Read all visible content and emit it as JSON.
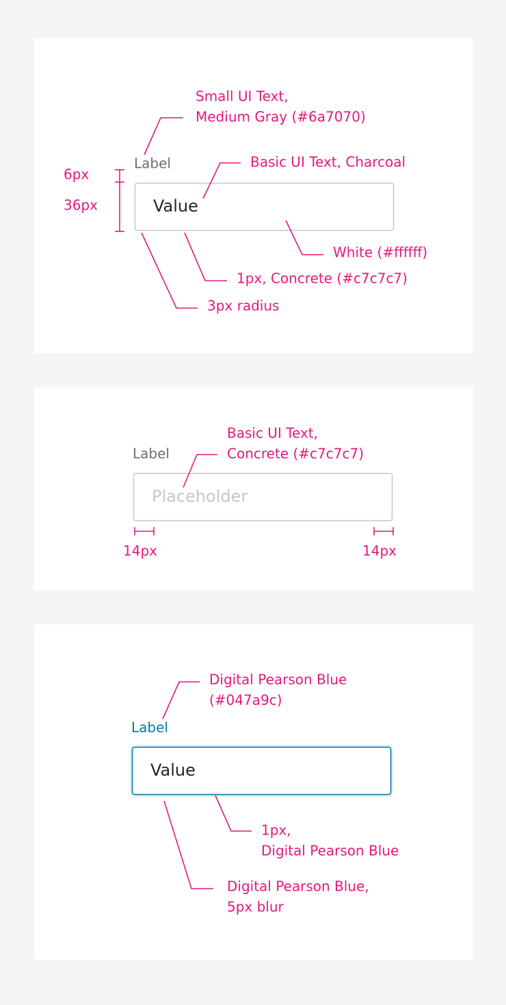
{
  "panels": [
    {
      "label": "Label",
      "value": "Value",
      "annotations": [
        {
          "lines": [
            "Small UI Text,",
            "Medium Gray (#6a7070)"
          ]
        },
        {
          "lines": [
            "Basic UI Text, Charcoal"
          ]
        },
        {
          "lines": [
            "White (#ffffff)"
          ]
        },
        {
          "lines": [
            "1px, Concrete (#c7c7c7)"
          ]
        },
        {
          "lines": [
            "3px radius"
          ]
        }
      ],
      "dimensions": [
        "6px",
        "36px"
      ]
    },
    {
      "label": "Label",
      "placeholder": "Placeholder",
      "annotations": [
        {
          "lines": [
            "Basic UI Text,",
            "Concrete (#c7c7c7)"
          ]
        }
      ],
      "dimensions": [
        "14px",
        "14px"
      ]
    },
    {
      "label": "Label",
      "value": "Value",
      "annotations": [
        {
          "lines": [
            "Digital Pearson Blue",
            "(#047a9c)"
          ]
        },
        {
          "lines": [
            "1px,",
            "Digital Pearson Blue"
          ]
        },
        {
          "lines": [
            "Digital Pearson Blue,",
            "5px blur"
          ]
        }
      ]
    }
  ]
}
